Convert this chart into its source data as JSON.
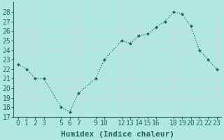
{
  "x": [
    0,
    1,
    2,
    3,
    5,
    6,
    7,
    9,
    10,
    12,
    13,
    14,
    15,
    16,
    17,
    18,
    19,
    20,
    21,
    22,
    23
  ],
  "y": [
    22.5,
    22.0,
    21.0,
    21.0,
    18.0,
    17.5,
    19.5,
    21.0,
    23.0,
    25.0,
    24.7,
    25.5,
    25.7,
    26.4,
    27.0,
    28.0,
    27.8,
    26.5,
    24.0,
    23.0,
    22.0
  ],
  "xlabel": "Humidex (Indice chaleur)",
  "xlim": [
    -0.5,
    23.5
  ],
  "ylim": [
    17,
    29
  ],
  "yticks": [
    17,
    18,
    19,
    20,
    21,
    22,
    23,
    24,
    25,
    26,
    27,
    28
  ],
  "xticks": [
    0,
    1,
    2,
    3,
    5,
    6,
    7,
    9,
    10,
    12,
    13,
    14,
    15,
    16,
    18,
    19,
    20,
    21,
    22,
    23
  ],
  "line_color": "#1a6b5a",
  "marker_color": "#1a6b5a",
  "bg_color": "#b0e8e0",
  "grid_color": "#d0f0e8",
  "font_color": "#1a6b5a",
  "xlabel_fontsize": 8,
  "tick_fontsize": 7
}
